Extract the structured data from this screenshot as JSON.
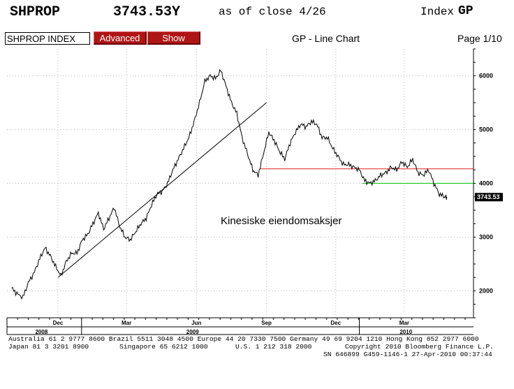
{
  "header": {
    "ticker": "SHPROP",
    "price": "3743.53Y",
    "as_of": "as of close  4/26",
    "index_label": "Index",
    "index_code": "GP"
  },
  "toolbar": {
    "security_value": "SHPROP INDEX",
    "advanced_label": "Advanced",
    "show_label": "Show",
    "chart_title": "GP - Line Chart",
    "page": "Page 1/10"
  },
  "chart_data": {
    "type": "line",
    "title": "",
    "annotation": "Kinesiske eiendomsaksjer",
    "last_value_label": "3743.53",
    "y_ticks": [
      "2000",
      "3000",
      "4000",
      "5000",
      "6000"
    ],
    "ylim": [
      1500,
      6500
    ],
    "month_ticks": [
      "Dec",
      "Mar",
      "Jun",
      "Sep",
      "Dec",
      "Mar"
    ],
    "year_ticks": [
      "2008",
      "2009",
      "2010"
    ],
    "grid": true,
    "colors": {
      "line": "#000000",
      "red_level": "#e02020",
      "green_level": "#22cc22",
      "trend": "#000000"
    },
    "series": [
      {
        "x": [
          "2008-10-01",
          "2008-10-08",
          "2008-10-16",
          "2008-10-23",
          "2008-10-31",
          "2008-11-07",
          "2008-11-14",
          "2008-11-21",
          "2008-11-28",
          "2008-12-05",
          "2008-12-12",
          "2008-12-19",
          "2008-12-26",
          "2009-01-02",
          "2009-01-09",
          "2009-01-16",
          "2009-01-23",
          "2009-01-30",
          "2009-02-06",
          "2009-02-13",
          "2009-02-20",
          "2009-02-27",
          "2009-03-06",
          "2009-03-13",
          "2009-03-20",
          "2009-03-27",
          "2009-04-03",
          "2009-04-10",
          "2009-04-17",
          "2009-04-24",
          "2009-05-01",
          "2009-05-08",
          "2009-05-15",
          "2009-05-22",
          "2009-05-29",
          "2009-06-05",
          "2009-06-12",
          "2009-06-19",
          "2009-06-26",
          "2009-07-03",
          "2009-07-10",
          "2009-07-17",
          "2009-07-24",
          "2009-07-31",
          "2009-08-07",
          "2009-08-14",
          "2009-08-21",
          "2009-08-28",
          "2009-09-04",
          "2009-09-11",
          "2009-09-18",
          "2009-09-25",
          "2009-10-02",
          "2009-10-09",
          "2009-10-16",
          "2009-10-23",
          "2009-10-30",
          "2009-11-06",
          "2009-11-13",
          "2009-11-20",
          "2009-11-27",
          "2009-12-04",
          "2009-12-11",
          "2009-12-18",
          "2009-12-25",
          "2010-01-01",
          "2010-01-08",
          "2010-01-15",
          "2010-01-22",
          "2010-01-29",
          "2010-02-05",
          "2010-02-12",
          "2010-02-19",
          "2010-02-26",
          "2010-03-05",
          "2010-03-12",
          "2010-03-19",
          "2010-03-26",
          "2010-04-02",
          "2010-04-09",
          "2010-04-16",
          "2010-04-23",
          "2010-04-26"
        ],
        "values": [
          2050,
          1950,
          1880,
          2150,
          2350,
          2600,
          2800,
          2650,
          2450,
          2280,
          2550,
          2700,
          2700,
          2950,
          3050,
          3250,
          3450,
          3150,
          3350,
          3550,
          3200,
          3000,
          2950,
          3100,
          3250,
          3350,
          3600,
          3800,
          3850,
          4000,
          4250,
          4450,
          4650,
          4850,
          5150,
          5500,
          5900,
          6000,
          5950,
          6100,
          5800,
          5500,
          5300,
          4850,
          4550,
          4250,
          4150,
          4550,
          4950,
          4800,
          4600,
          4450,
          4750,
          4950,
          5100,
          5050,
          5150,
          5100,
          4850,
          4850,
          4650,
          4500,
          4350,
          4350,
          4300,
          4250,
          4050,
          4000,
          4050,
          4150,
          4200,
          4300,
          4250,
          4400,
          4300,
          4450,
          4200,
          4150,
          4250,
          4000,
          3800,
          3750,
          3743.53
        ]
      }
    ],
    "trend_line": {
      "from": [
        "2008-12-01",
        2250
      ],
      "to": [
        "2009-09-01",
        5500
      ]
    },
    "red_level": {
      "from": "2009-08-24",
      "value": 4270
    },
    "green_level": {
      "from": "2010-01-05",
      "value": 4000
    }
  },
  "footer": {
    "line1": "Australia 61 2 9777 8600 Brazil 5511 3048 4500 Europe 44 20 7330 7500 Germany 49 69 9204 1210 Hong Kong 852 2977 6000",
    "line2a": "Japan 81 3 3201 8900",
    "line2b": "Singapore 65 6212 1000",
    "line2c": "U.S. 1 212 318 2000",
    "line2d": "Copyright 2010 Bloomberg Finance L.P.",
    "line3": "SN 646899 G459-1146-1 27-Apr-2010 00:37:44"
  }
}
